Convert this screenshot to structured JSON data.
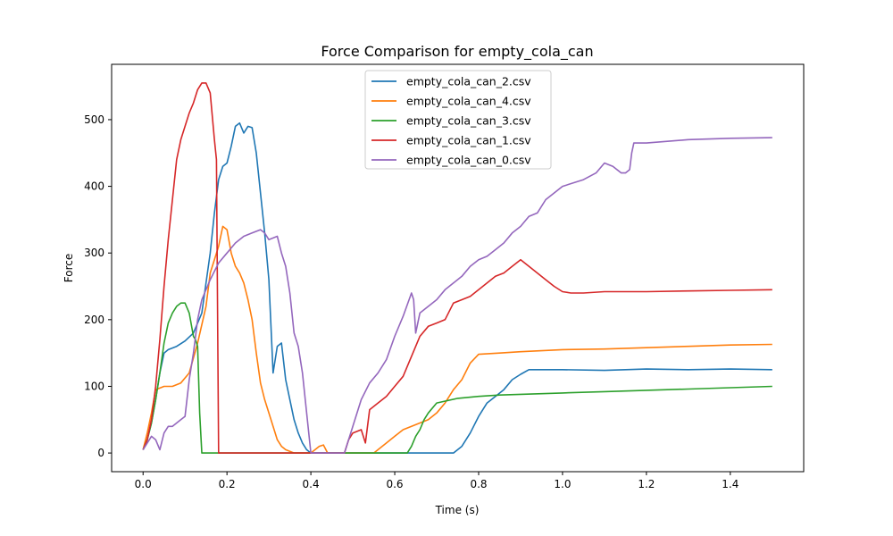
{
  "chart_data": {
    "type": "line",
    "title": "Force Comparison for empty_cola_can",
    "xlabel": "Time (s)",
    "ylabel": "Force",
    "xlim": [
      -0.075,
      1.575
    ],
    "ylim": [
      -28,
      583
    ],
    "xticks": [
      0.0,
      0.2,
      0.4,
      0.6,
      0.8,
      1.0,
      1.2,
      1.4
    ],
    "xtick_labels": [
      "0.0",
      "0.2",
      "0.4",
      "0.6",
      "0.8",
      "1.0",
      "1.2",
      "1.4"
    ],
    "yticks": [
      0,
      100,
      200,
      300,
      400,
      500
    ],
    "ytick_labels": [
      "0",
      "100",
      "200",
      "300",
      "400",
      "500"
    ],
    "grid": false,
    "legend_position": "top-center",
    "series": [
      {
        "name": "empty_cola_can_2.csv",
        "color": "#1f77b4",
        "x": [
          0.0,
          0.01,
          0.02,
          0.03,
          0.04,
          0.05,
          0.06,
          0.08,
          0.1,
          0.12,
          0.14,
          0.15,
          0.16,
          0.17,
          0.18,
          0.19,
          0.2,
          0.21,
          0.22,
          0.23,
          0.24,
          0.25,
          0.26,
          0.27,
          0.28,
          0.29,
          0.3,
          0.31,
          0.32,
          0.33,
          0.34,
          0.35,
          0.36,
          0.37,
          0.38,
          0.39,
          0.4,
          0.45,
          0.5,
          0.55,
          0.6,
          0.65,
          0.7,
          0.74,
          0.75,
          0.76,
          0.78,
          0.8,
          0.82,
          0.84,
          0.86,
          0.88,
          0.9,
          0.92,
          0.95,
          1.0,
          1.1,
          1.2,
          1.3,
          1.4,
          1.5
        ],
        "values": [
          5,
          20,
          45,
          80,
          120,
          150,
          155,
          160,
          168,
          180,
          210,
          255,
          300,
          360,
          410,
          430,
          435,
          460,
          490,
          495,
          480,
          490,
          488,
          450,
          390,
          330,
          260,
          120,
          160,
          165,
          110,
          80,
          50,
          30,
          15,
          5,
          0,
          0,
          0,
          0,
          0,
          0,
          0,
          0,
          5,
          10,
          30,
          55,
          75,
          85,
          95,
          110,
          118,
          125,
          125,
          125,
          124,
          126,
          125,
          126,
          125
        ]
      },
      {
        "name": "empty_cola_can_4.csv",
        "color": "#ff7f0e",
        "x": [
          0.0,
          0.01,
          0.02,
          0.03,
          0.05,
          0.07,
          0.09,
          0.11,
          0.13,
          0.15,
          0.16,
          0.17,
          0.18,
          0.19,
          0.2,
          0.21,
          0.22,
          0.23,
          0.24,
          0.25,
          0.26,
          0.27,
          0.28,
          0.29,
          0.3,
          0.31,
          0.32,
          0.33,
          0.34,
          0.36,
          0.38,
          0.4,
          0.42,
          0.43,
          0.44,
          0.46,
          0.5,
          0.55,
          0.56,
          0.58,
          0.6,
          0.62,
          0.64,
          0.66,
          0.68,
          0.7,
          0.72,
          0.74,
          0.76,
          0.78,
          0.8,
          0.85,
          0.9,
          1.0,
          1.1,
          1.2,
          1.3,
          1.4,
          1.5
        ],
        "values": [
          5,
          30,
          60,
          95,
          100,
          100,
          105,
          120,
          165,
          220,
          270,
          290,
          310,
          340,
          335,
          300,
          280,
          270,
          255,
          230,
          200,
          150,
          105,
          80,
          60,
          40,
          20,
          10,
          5,
          0,
          0,
          0,
          10,
          12,
          0,
          0,
          0,
          0,
          5,
          15,
          25,
          35,
          40,
          45,
          50,
          60,
          75,
          95,
          110,
          135,
          148,
          150,
          152,
          155,
          156,
          158,
          160,
          162,
          163
        ]
      },
      {
        "name": "empty_cola_can_3.csv",
        "color": "#2ca02c",
        "x": [
          0.0,
          0.01,
          0.02,
          0.03,
          0.04,
          0.05,
          0.06,
          0.07,
          0.08,
          0.09,
          0.1,
          0.11,
          0.12,
          0.125,
          0.13,
          0.135,
          0.14,
          0.2,
          0.3,
          0.4,
          0.5,
          0.6,
          0.63,
          0.64,
          0.65,
          0.66,
          0.67,
          0.68,
          0.7,
          0.75,
          0.8,
          0.85,
          0.9,
          1.0,
          1.1,
          1.2,
          1.3,
          1.4,
          1.5
        ],
        "values": [
          5,
          20,
          45,
          80,
          120,
          165,
          195,
          210,
          220,
          225,
          225,
          210,
          175,
          170,
          160,
          60,
          0,
          0,
          0,
          0,
          0,
          0,
          0,
          10,
          25,
          35,
          50,
          60,
          75,
          82,
          85,
          87,
          88,
          90,
          92,
          94,
          96,
          98,
          100
        ]
      },
      {
        "name": "empty_cola_can_1.csv",
        "color": "#d62728",
        "x": [
          0.0,
          0.01,
          0.02,
          0.03,
          0.04,
          0.05,
          0.06,
          0.07,
          0.08,
          0.09,
          0.1,
          0.11,
          0.12,
          0.13,
          0.14,
          0.15,
          0.16,
          0.17,
          0.175,
          0.18,
          0.19,
          0.3,
          0.4,
          0.48,
          0.49,
          0.5,
          0.52,
          0.53,
          0.54,
          0.56,
          0.58,
          0.6,
          0.62,
          0.64,
          0.66,
          0.68,
          0.7,
          0.72,
          0.74,
          0.76,
          0.78,
          0.8,
          0.82,
          0.84,
          0.86,
          0.88,
          0.9,
          0.92,
          0.94,
          0.96,
          0.98,
          1.0,
          1.02,
          1.05,
          1.1,
          1.2,
          1.3,
          1.4,
          1.5
        ],
        "values": [
          5,
          20,
          50,
          100,
          170,
          250,
          320,
          380,
          440,
          470,
          490,
          510,
          525,
          545,
          555,
          555,
          540,
          470,
          440,
          0,
          0,
          0,
          0,
          0,
          20,
          30,
          35,
          15,
          65,
          75,
          85,
          100,
          115,
          145,
          175,
          190,
          195,
          200,
          225,
          230,
          235,
          245,
          255,
          265,
          270,
          280,
          290,
          280,
          270,
          260,
          250,
          242,
          240,
          240,
          242,
          242,
          243,
          244,
          245
        ]
      },
      {
        "name": "empty_cola_can_0.csv",
        "color": "#9467bd",
        "x": [
          0.0,
          0.01,
          0.02,
          0.03,
          0.04,
          0.05,
          0.06,
          0.07,
          0.08,
          0.09,
          0.1,
          0.11,
          0.12,
          0.13,
          0.14,
          0.15,
          0.16,
          0.18,
          0.2,
          0.22,
          0.24,
          0.26,
          0.28,
          0.29,
          0.3,
          0.32,
          0.33,
          0.34,
          0.35,
          0.36,
          0.37,
          0.38,
          0.39,
          0.4,
          0.42,
          0.44,
          0.46,
          0.48,
          0.5,
          0.52,
          0.54,
          0.56,
          0.58,
          0.6,
          0.62,
          0.64,
          0.645,
          0.65,
          0.66,
          0.7,
          0.72,
          0.74,
          0.76,
          0.78,
          0.8,
          0.82,
          0.84,
          0.86,
          0.88,
          0.9,
          0.92,
          0.94,
          0.96,
          1.0,
          1.05,
          1.08,
          1.1,
          1.12,
          1.14,
          1.15,
          1.16,
          1.165,
          1.17,
          1.2,
          1.3,
          1.4,
          1.5
        ],
        "values": [
          5,
          15,
          25,
          20,
          5,
          30,
          40,
          40,
          45,
          50,
          55,
          110,
          150,
          200,
          230,
          245,
          260,
          285,
          300,
          315,
          325,
          330,
          335,
          330,
          320,
          325,
          300,
          280,
          240,
          180,
          160,
          120,
          60,
          0,
          0,
          0,
          0,
          0,
          40,
          80,
          105,
          120,
          140,
          175,
          205,
          240,
          230,
          180,
          210,
          230,
          245,
          255,
          265,
          280,
          290,
          295,
          305,
          315,
          330,
          340,
          355,
          360,
          380,
          400,
          410,
          420,
          435,
          430,
          420,
          420,
          425,
          450,
          465,
          465,
          470,
          472,
          473
        ]
      }
    ]
  }
}
